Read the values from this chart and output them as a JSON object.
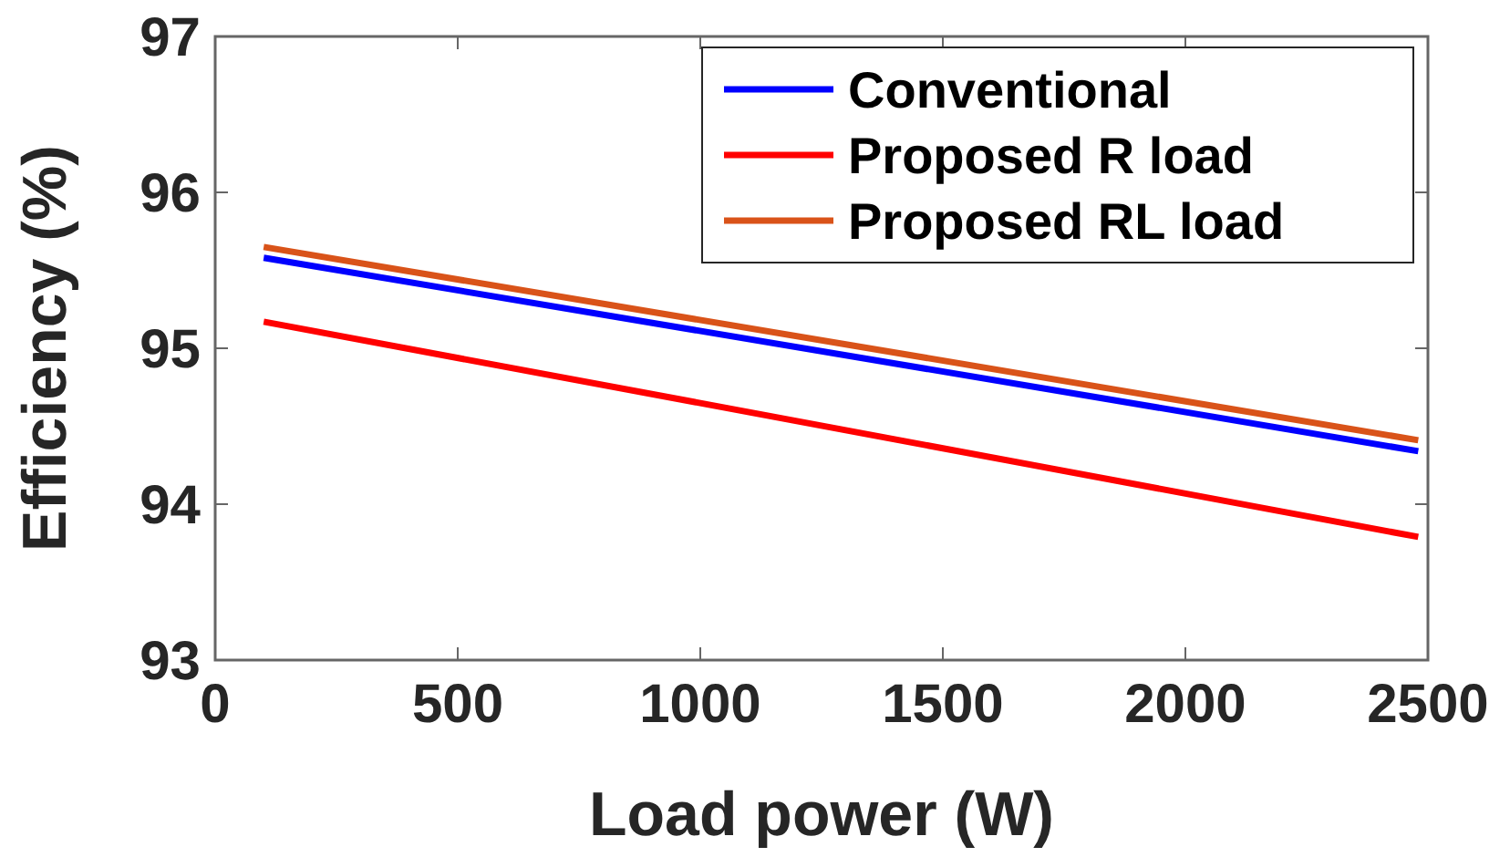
{
  "chart_data": {
    "type": "line",
    "xlabel": "Load power (W)",
    "ylabel": "Efficiency (%)",
    "xlim": [
      0,
      2500
    ],
    "xticks": [
      0,
      500,
      1000,
      1500,
      2000,
      2500
    ],
    "ylim": [
      93,
      97
    ],
    "yticks": [
      93,
      94,
      95,
      96,
      97
    ],
    "x": [
      100,
      2480
    ],
    "series": [
      {
        "name": "Conventional",
        "color": "#0000ff",
        "values": [
          95.58,
          94.34
        ]
      },
      {
        "name": "Proposed R load",
        "color": "#ff0000",
        "values": [
          95.17,
          93.79
        ]
      },
      {
        "name": "Proposed RL load",
        "color": "#d95319",
        "values": [
          95.65,
          94.41
        ]
      }
    ],
    "legend": "top right",
    "grid": false,
    "line_style": "solid",
    "marker": "none"
  }
}
